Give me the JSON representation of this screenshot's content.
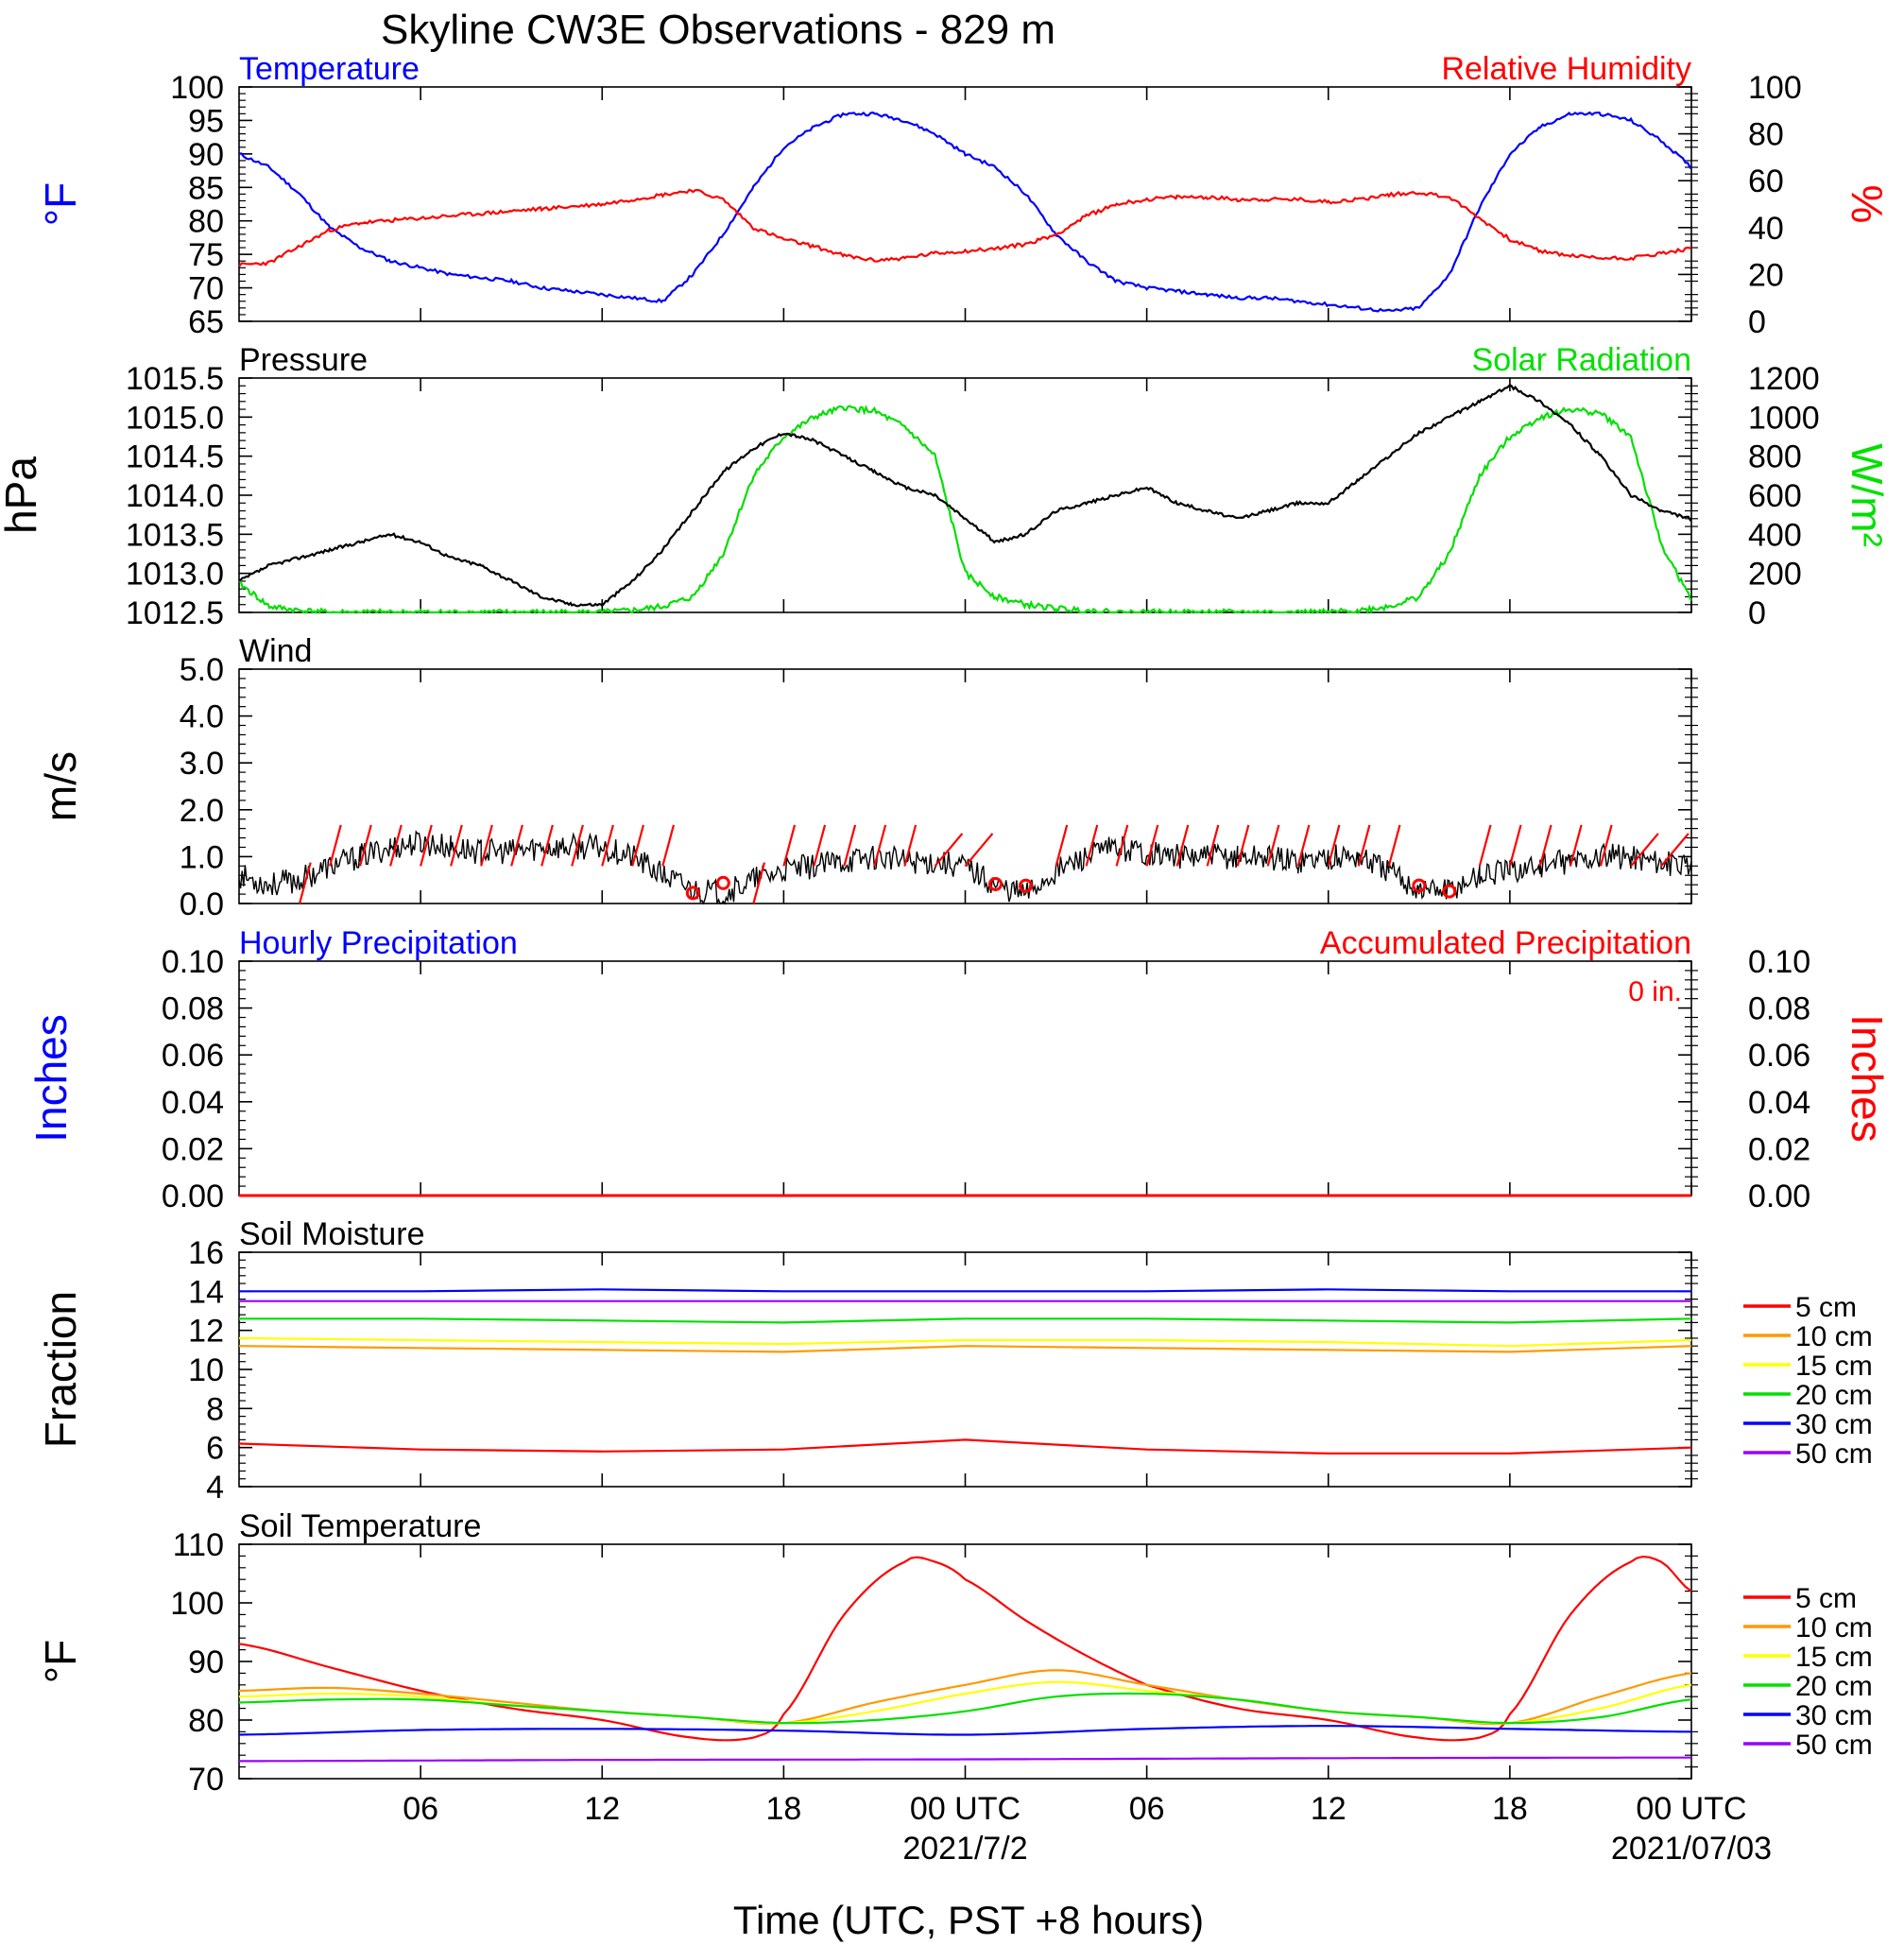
{
  "title": "Skyline CW3E Observations - 829 m",
  "xlabel": "Time (UTC, PST +8 hours)",
  "x_ticks": [
    {
      "hour": 6,
      "label": "06",
      "date": ""
    },
    {
      "hour": 12,
      "label": "12",
      "date": ""
    },
    {
      "hour": 18,
      "label": "18",
      "date": ""
    },
    {
      "hour": 24,
      "label": "00 UTC",
      "date": "2021/7/2"
    },
    {
      "hour": 30,
      "label": "06",
      "date": ""
    },
    {
      "hour": 36,
      "label": "12",
      "date": ""
    },
    {
      "hour": 42,
      "label": "18",
      "date": ""
    },
    {
      "hour": 48,
      "label": "00 UTC",
      "date": "2021/07/03"
    }
  ],
  "colors": {
    "temperature": "#0000ff",
    "humidity": "#ff0000",
    "pressure": "#000000",
    "solar": "#00e000",
    "wind": "#000000",
    "barb": "#ff0000",
    "precip": "#ff0000"
  },
  "panels": {
    "temp_rh": {
      "left_title": "Temperature",
      "right_title": "Relative Humidity",
      "left_unit": "°F",
      "right_unit": "%",
      "left_ticks": [
        "65",
        "70",
        "75",
        "80",
        "85",
        "90",
        "95",
        "100"
      ],
      "right_ticks": [
        "0",
        "20",
        "40",
        "60",
        "80",
        "100"
      ]
    },
    "pressure_solar": {
      "left_title": "Pressure",
      "right_title": "Solar Radiation",
      "left_unit": "hPa",
      "right_unit": "W/m²",
      "left_ticks": [
        "1012.5",
        "1013.0",
        "1013.5",
        "1014.0",
        "1014.5",
        "1015.0",
        "1015.5"
      ],
      "right_ticks": [
        "0",
        "200",
        "400",
        "600",
        "800",
        "1000",
        "1200"
      ]
    },
    "wind": {
      "left_title": "Wind",
      "left_unit": "m/s",
      "left_ticks": [
        "0.0",
        "1.0",
        "2.0",
        "3.0",
        "4.0",
        "5.0"
      ]
    },
    "precip": {
      "left_title": "Hourly Precipitation",
      "right_title": "Accumulated Precipitation",
      "total_label": "0 in.",
      "left_unit": "Inches",
      "right_unit": "Inches",
      "left_ticks": [
        "0.00",
        "0.02",
        "0.04",
        "0.06",
        "0.08",
        "0.10"
      ],
      "right_ticks": [
        "0.00",
        "0.02",
        "0.04",
        "0.06",
        "0.08",
        "0.10"
      ]
    },
    "soil_moisture": {
      "left_title": "Soil Moisture",
      "left_unit": "Fraction",
      "left_ticks": [
        "4",
        "6",
        "8",
        "10",
        "12",
        "14",
        "16"
      ]
    },
    "soil_temp": {
      "left_title": "Soil Temperature",
      "left_unit": "°F",
      "left_ticks": [
        "70",
        "80",
        "90",
        "100",
        "110"
      ]
    }
  },
  "depth_legend": [
    {
      "label": "5 cm",
      "color": "#ff0000"
    },
    {
      "label": "10 cm",
      "color": "#ff9900"
    },
    {
      "label": "15 cm",
      "color": "#ffff00"
    },
    {
      "label": "20 cm",
      "color": "#00e000"
    },
    {
      "label": "30 cm",
      "color": "#0000ff"
    },
    {
      "label": "50 cm",
      "color": "#9900ff"
    }
  ],
  "chart_data": [
    {
      "type": "line",
      "title": "Temperature / Relative Humidity",
      "x_unit": "hours since 2021-07-01 00 UTC",
      "xlim": [
        0,
        48
      ],
      "ylim_left": [
        65,
        100
      ],
      "ylim_right": [
        0,
        100
      ],
      "series": [
        {
          "name": "Temperature",
          "axis": "left",
          "x": [
            0,
            1,
            2,
            3,
            4,
            5,
            6,
            7,
            8,
            9,
            10,
            11,
            12,
            13,
            14,
            15,
            16,
            17,
            18,
            19,
            20,
            21,
            22,
            23,
            24,
            25,
            26,
            27,
            28,
            29,
            30,
            31,
            32,
            33,
            34,
            35,
            36,
            37,
            38,
            39,
            40,
            41,
            42,
            43,
            44,
            45,
            46,
            47,
            48
          ],
          "y": [
            90,
            88,
            84,
            79,
            76,
            74,
            73,
            72,
            71.5,
            71,
            70,
            69.5,
            69,
            68.5,
            68,
            72,
            78,
            85,
            91,
            94,
            96,
            96,
            95,
            93,
            90,
            88,
            84,
            78,
            74,
            71,
            70,
            69.5,
            69,
            68.5,
            68.5,
            68,
            67.5,
            67,
            66.5,
            67,
            72,
            82,
            90,
            94,
            96,
            96,
            95,
            92,
            88
          ]
        },
        {
          "name": "Relative Humidity",
          "axis": "right",
          "x": [
            0,
            1,
            2,
            3,
            4,
            5,
            6,
            7,
            8,
            9,
            10,
            11,
            12,
            13,
            14,
            15,
            16,
            17,
            18,
            19,
            20,
            21,
            22,
            23,
            24,
            25,
            26,
            27,
            28,
            29,
            30,
            31,
            32,
            33,
            34,
            35,
            36,
            37,
            38,
            39,
            40,
            41,
            42,
            43,
            44,
            45,
            46,
            47,
            48
          ],
          "y": [
            24,
            25,
            32,
            39,
            42,
            43,
            44,
            45,
            46,
            47,
            48,
            49,
            50,
            52,
            54,
            56,
            52,
            40,
            35,
            32,
            28,
            26,
            27,
            29,
            30,
            31,
            33,
            37,
            45,
            50,
            52,
            53,
            53,
            52,
            52,
            52,
            51,
            52,
            54,
            55,
            53,
            44,
            35,
            30,
            28,
            27,
            27,
            29,
            31
          ]
        }
      ]
    },
    {
      "type": "line",
      "title": "Pressure / Solar Radiation",
      "x_unit": "hours since 2021-07-01 00 UTC",
      "xlim": [
        0,
        48
      ],
      "ylim_left": [
        1012.5,
        1015.5
      ],
      "ylim_right": [
        0,
        1200
      ],
      "series": [
        {
          "name": "Pressure",
          "axis": "left",
          "x": [
            0,
            1,
            2,
            3,
            4,
            5,
            6,
            7,
            8,
            9,
            10,
            11,
            12,
            13,
            14,
            15,
            16,
            17,
            18,
            19,
            20,
            21,
            22,
            23,
            24,
            25,
            26,
            27,
            28,
            29,
            30,
            31,
            32,
            33,
            34,
            35,
            36,
            37,
            38,
            39,
            40,
            41,
            42,
            43,
            44,
            45,
            46,
            47,
            48
          ],
          "y": [
            1012.9,
            1013.1,
            1013.2,
            1013.3,
            1013.4,
            1013.5,
            1013.4,
            1013.2,
            1013.1,
            1012.9,
            1012.7,
            1012.6,
            1012.6,
            1012.9,
            1013.3,
            1013.8,
            1014.3,
            1014.6,
            1014.8,
            1014.7,
            1014.5,
            1014.3,
            1014.1,
            1014.0,
            1013.7,
            1013.4,
            1013.5,
            1013.8,
            1013.9,
            1014.0,
            1014.1,
            1013.9,
            1013.8,
            1013.7,
            1013.8,
            1013.9,
            1013.9,
            1014.2,
            1014.5,
            1014.8,
            1015.0,
            1015.2,
            1015.4,
            1015.2,
            1014.9,
            1014.5,
            1014.0,
            1013.8,
            1013.7
          ]
        },
        {
          "name": "Solar Radiation",
          "axis": "right",
          "x": [
            0,
            1,
            2,
            3,
            4,
            5,
            6,
            7,
            8,
            9,
            10,
            11,
            12,
            13,
            14,
            15,
            16,
            17,
            18,
            19,
            20,
            21,
            22,
            23,
            24,
            25,
            26,
            27,
            28,
            29,
            30,
            31,
            32,
            33,
            34,
            35,
            36,
            37,
            38,
            39,
            40,
            41,
            42,
            43,
            44,
            45,
            46,
            47,
            48
          ],
          "y": [
            150,
            30,
            10,
            0,
            0,
            0,
            0,
            0,
            0,
            0,
            0,
            0,
            0,
            10,
            30,
            80,
            300,
            700,
            900,
            1000,
            1050,
            1030,
            950,
            800,
            200,
            80,
            40,
            20,
            10,
            0,
            0,
            0,
            0,
            0,
            0,
            0,
            0,
            10,
            30,
            80,
            300,
            700,
            900,
            1000,
            1040,
            1020,
            900,
            350,
            60
          ]
        }
      ]
    },
    {
      "type": "line",
      "title": "Wind",
      "x_unit": "hours since 2021-07-01 00 UTC",
      "xlim": [
        0,
        48
      ],
      "ylim": [
        0,
        5
      ],
      "series": [
        {
          "name": "Wind",
          "x": [
            0,
            1,
            2,
            3,
            4,
            5,
            6,
            7,
            8,
            9,
            10,
            11,
            12,
            13,
            14,
            15,
            16,
            17,
            18,
            19,
            20,
            21,
            22,
            23,
            24,
            25,
            26,
            27,
            28,
            29,
            30,
            31,
            32,
            33,
            34,
            35,
            36,
            37,
            38,
            39,
            40,
            41,
            42,
            43,
            44,
            45,
            46,
            47,
            48
          ],
          "y": [
            0.6,
            0.4,
            0.5,
            0.8,
            1.0,
            1.2,
            1.3,
            1.2,
            1.1,
            1.1,
            1.2,
            1.2,
            1.2,
            1.0,
            0.6,
            0.3,
            0.2,
            0.5,
            0.7,
            0.8,
            0.9,
            1.0,
            0.9,
            0.9,
            0.8,
            0.4,
            0.2,
            0.7,
            1.0,
            1.2,
            1.1,
            1.0,
            1.0,
            1.0,
            1.0,
            0.9,
            1.0,
            1.0,
            0.7,
            0.3,
            0.3,
            0.6,
            0.7,
            0.8,
            0.9,
            1.0,
            1.0,
            0.9,
            0.7
          ]
        }
      ]
    },
    {
      "type": "line",
      "title": "Hourly Precipitation / Accumulated Precipitation",
      "x_unit": "hours since 2021-07-01 00 UTC",
      "xlim": [
        0,
        48
      ],
      "ylim": [
        0,
        0.1
      ],
      "series": [
        {
          "name": "Hourly Precipitation",
          "x": [
            0,
            48
          ],
          "y": [
            0,
            0
          ]
        },
        {
          "name": "Accumulated Precipitation",
          "x": [
            0,
            48
          ],
          "y": [
            0,
            0
          ]
        }
      ]
    },
    {
      "type": "line",
      "title": "Soil Moisture",
      "x_unit": "hours since 2021-07-01 00 UTC",
      "xlim": [
        0,
        48
      ],
      "ylim": [
        4,
        16
      ],
      "series": [
        {
          "name": "5 cm",
          "x": [
            0,
            6,
            12,
            18,
            24,
            30,
            36,
            42,
            48
          ],
          "y": [
            6.2,
            5.9,
            5.8,
            5.9,
            6.4,
            5.9,
            5.7,
            5.7,
            6.0
          ]
        },
        {
          "name": "10 cm",
          "x": [
            0,
            6,
            12,
            18,
            24,
            30,
            36,
            42,
            48
          ],
          "y": [
            11.2,
            11.1,
            11.0,
            10.9,
            11.2,
            11.1,
            11.0,
            10.9,
            11.2
          ]
        },
        {
          "name": "15 cm",
          "x": [
            0,
            6,
            12,
            18,
            24,
            30,
            36,
            42,
            48
          ],
          "y": [
            11.6,
            11.5,
            11.4,
            11.3,
            11.5,
            11.5,
            11.4,
            11.2,
            11.5
          ]
        },
        {
          "name": "20 cm",
          "x": [
            0,
            6,
            12,
            18,
            24,
            30,
            36,
            42,
            48
          ],
          "y": [
            12.6,
            12.6,
            12.5,
            12.4,
            12.6,
            12.6,
            12.5,
            12.4,
            12.6
          ]
        },
        {
          "name": "30 cm",
          "x": [
            0,
            6,
            12,
            18,
            24,
            30,
            36,
            42,
            48
          ],
          "y": [
            14.0,
            14.0,
            14.1,
            14.0,
            14.0,
            14.0,
            14.1,
            14.0,
            14.0
          ]
        },
        {
          "name": "50 cm",
          "x": [
            0,
            6,
            12,
            18,
            24,
            30,
            36,
            42,
            48
          ],
          "y": [
            13.5,
            13.5,
            13.5,
            13.5,
            13.5,
            13.5,
            13.5,
            13.5,
            13.5
          ]
        }
      ]
    },
    {
      "type": "line",
      "title": "Soil Temperature",
      "x_unit": "hours since 2021-07-01 00 UTC",
      "xlim": [
        0,
        48
      ],
      "ylim": [
        70,
        110
      ],
      "series": [
        {
          "name": "5 cm",
          "x": [
            0,
            3,
            6,
            9,
            12,
            15,
            17,
            18,
            20,
            22,
            23,
            24,
            26,
            28,
            30,
            33,
            36,
            39,
            41,
            42,
            44,
            46,
            47,
            48
          ],
          "y": [
            93,
            89,
            85,
            82,
            80,
            77,
            77,
            81,
            98,
            107,
            107,
            104,
            97,
            91,
            86,
            82,
            80,
            77,
            77,
            81,
            98,
            107,
            107,
            102
          ]
        },
        {
          "name": "10 cm",
          "x": [
            0,
            3,
            6,
            9,
            12,
            15,
            18,
            21,
            24,
            27,
            30,
            33,
            36,
            39,
            42,
            45,
            48
          ],
          "y": [
            85,
            85.5,
            84.5,
            83,
            81.5,
            80.5,
            79.5,
            83,
            86,
            88.5,
            86,
            83.5,
            81.5,
            80.5,
            79.5,
            84,
            88
          ]
        },
        {
          "name": "15 cm",
          "x": [
            0,
            3,
            6,
            9,
            12,
            15,
            18,
            21,
            24,
            27,
            30,
            33,
            36,
            39,
            42,
            45,
            48
          ],
          "y": [
            84,
            84.5,
            84,
            82.5,
            81.5,
            80.5,
            79.5,
            81.5,
            84.5,
            86.5,
            85,
            83.5,
            81.5,
            80.5,
            79.5,
            82,
            86
          ]
        },
        {
          "name": "20 cm",
          "x": [
            0,
            3,
            6,
            9,
            12,
            15,
            18,
            21,
            24,
            27,
            30,
            33,
            36,
            39,
            42,
            45,
            48
          ],
          "y": [
            83,
            83.5,
            83.5,
            82.5,
            81.5,
            80.5,
            79.5,
            80,
            81.5,
            84,
            84.5,
            83.5,
            81.5,
            80.5,
            79.5,
            80.5,
            83.5
          ]
        },
        {
          "name": "30 cm",
          "x": [
            0,
            6,
            12,
            18,
            24,
            30,
            36,
            42,
            48
          ],
          "y": [
            77.5,
            78.3,
            78.5,
            78.2,
            77.5,
            78.5,
            79,
            78.5,
            78
          ]
        },
        {
          "name": "50 cm",
          "x": [
            0,
            12,
            24,
            36,
            48
          ],
          "y": [
            73,
            73.2,
            73.3,
            73.5,
            73.6
          ]
        }
      ]
    }
  ]
}
